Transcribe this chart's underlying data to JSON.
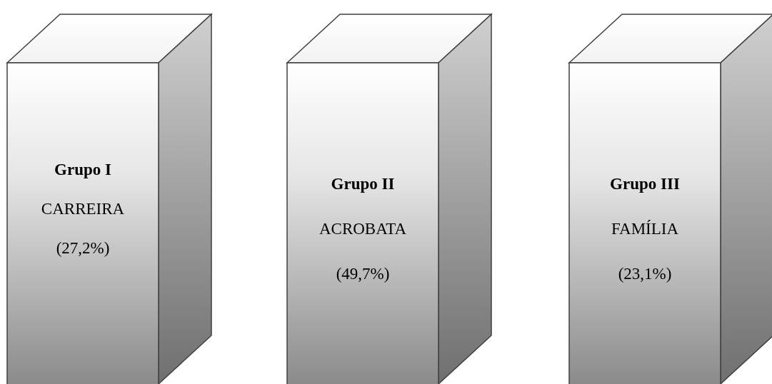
{
  "chart_data": {
    "type": "other",
    "categories": [
      "Grupo I",
      "Grupo II",
      "Grupo III"
    ],
    "annotations": [
      "CARREIRA",
      "ACROBATA",
      "FAMÍLIA"
    ],
    "values": [
      27.2,
      49.7,
      23.1
    ],
    "value_labels": [
      "(27,2%)",
      "(49,7%)",
      "(23,1%)"
    ]
  }
}
